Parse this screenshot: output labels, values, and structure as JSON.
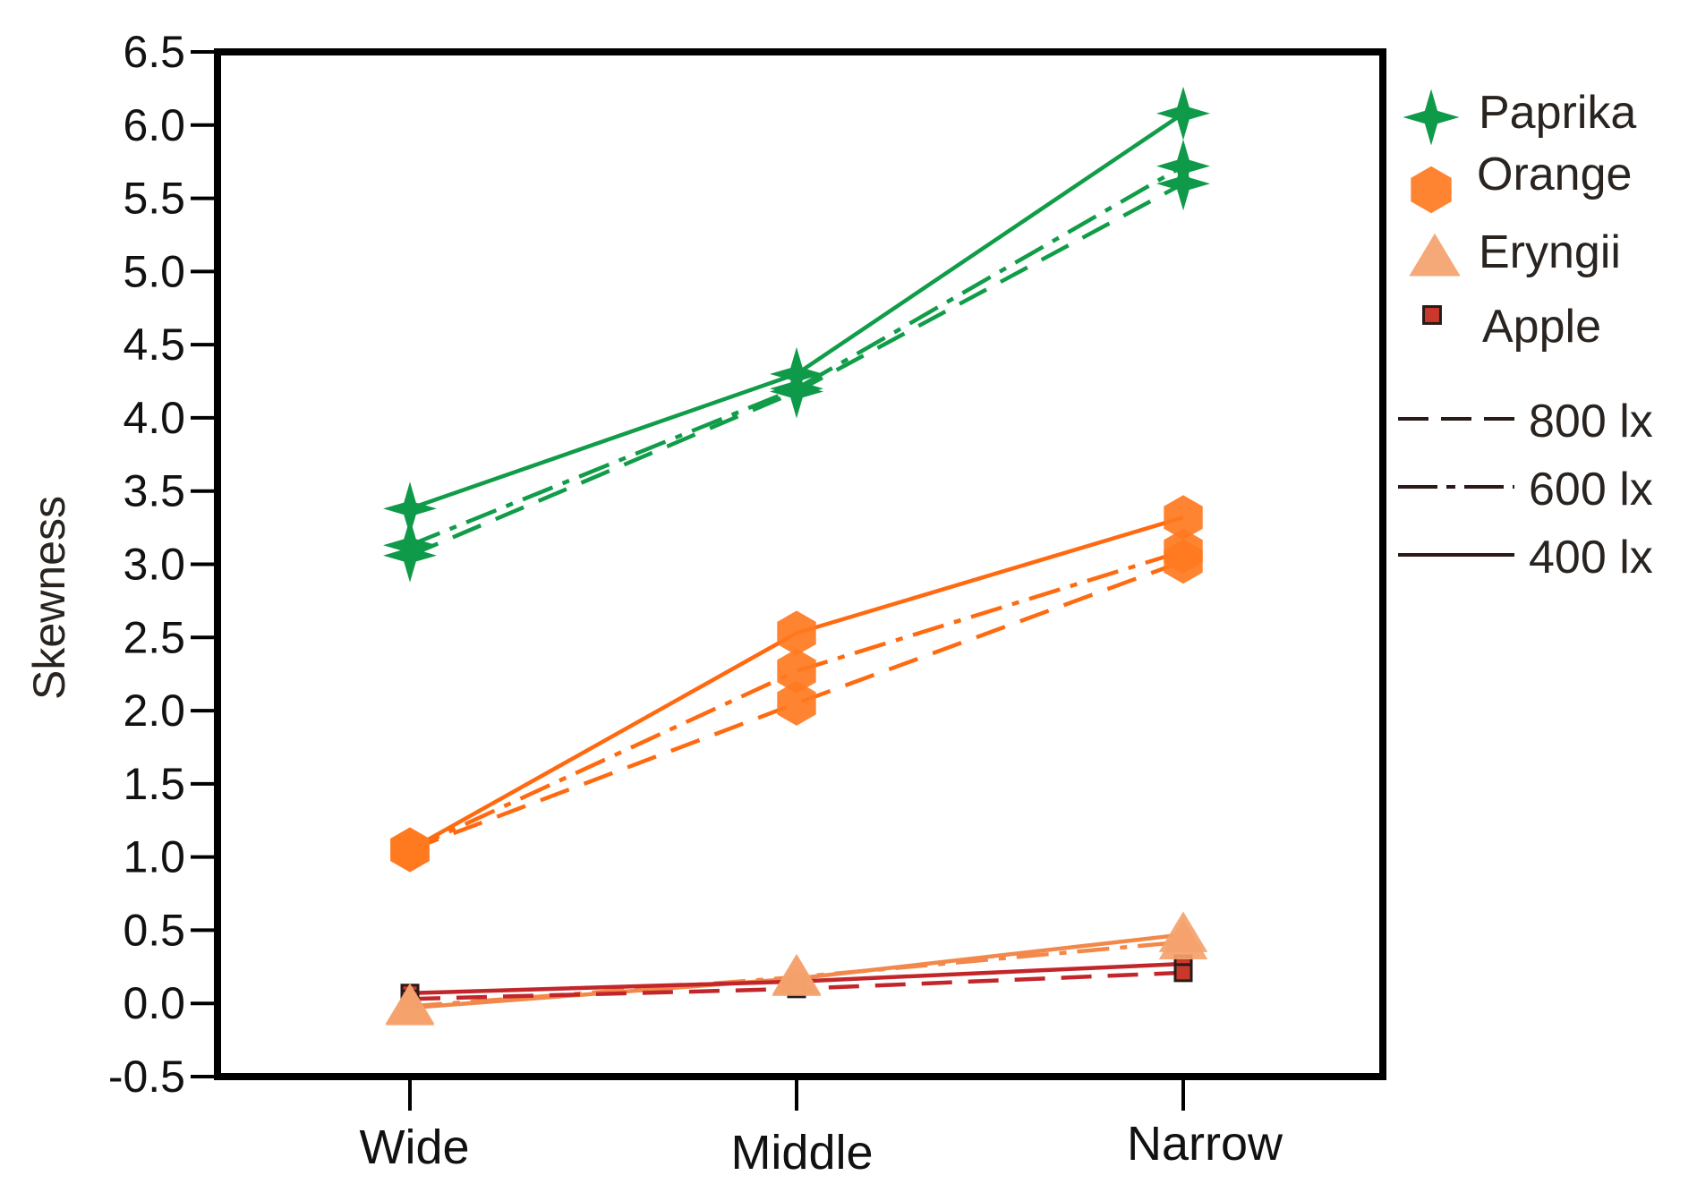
{
  "chart_data": {
    "type": "line",
    "title": "",
    "xlabel": "",
    "ylabel": "Skewness",
    "categories": [
      "Wide",
      "Middle",
      "Narrow"
    ],
    "ylim": [
      -0.5,
      6.5
    ],
    "yticks": [
      "6.5",
      "6.0",
      "5.5",
      "5.0",
      "4.5",
      "4.0",
      "3.5",
      "3.0",
      "2.5",
      "2.0",
      "1.5",
      "1.0",
      "0.5",
      "0.0",
      "-0.5"
    ],
    "grid": false,
    "legend_position": "right",
    "series": [
      {
        "name": "Paprika 400 lx",
        "material": "Paprika",
        "light": "400 lx",
        "values": [
          3.38,
          4.3,
          6.08
        ]
      },
      {
        "name": "Paprika 600 lx",
        "material": "Paprika",
        "light": "600 lx",
        "values": [
          3.13,
          4.2,
          5.72
        ]
      },
      {
        "name": "Paprika 800 lx",
        "material": "Paprika",
        "light": "800 lx",
        "values": [
          3.06,
          4.18,
          5.6
        ]
      },
      {
        "name": "Orange 400 lx",
        "material": "Orange",
        "light": "400 lx",
        "values": [
          1.05,
          2.53,
          3.32
        ]
      },
      {
        "name": "Orange 600 lx",
        "material": "Orange",
        "light": "600 lx",
        "values": [
          1.05,
          2.27,
          3.09
        ]
      },
      {
        "name": "Orange 800 lx",
        "material": "Orange",
        "light": "800 lx",
        "values": [
          1.05,
          2.05,
          3.02
        ]
      },
      {
        "name": "Eryngii 400 lx",
        "material": "Eryngii",
        "light": "400 lx",
        "values": [
          -0.03,
          0.17,
          0.47
        ]
      },
      {
        "name": "Eryngii 600 lx",
        "material": "Eryngii",
        "light": "600 lx",
        "values": [
          -0.02,
          0.18,
          0.42
        ]
      },
      {
        "name": "Apple 400 lx",
        "material": "Apple",
        "light": "400 lx",
        "values": [
          0.07,
          0.15,
          0.27
        ]
      },
      {
        "name": "Apple 800 lx",
        "material": "Apple",
        "light": "800 lx",
        "values": [
          0.03,
          0.1,
          0.21
        ]
      }
    ],
    "materials": [
      {
        "name": "Paprika",
        "marker": "star",
        "color": "#0f9a4a"
      },
      {
        "name": "Orange",
        "marker": "hexagon",
        "color": "#ff7a1f"
      },
      {
        "name": "Eryngii",
        "marker": "triangle",
        "color": "#f4a26c"
      },
      {
        "name": "Apple",
        "marker": "square",
        "color": "#c9382a"
      }
    ],
    "line_styles": [
      {
        "name": "800 lx",
        "dash": "dashed"
      },
      {
        "name": "600 lx",
        "dash": "dash-dot"
      },
      {
        "name": "400 lx",
        "dash": "solid"
      }
    ],
    "line_colors": {
      "Paprika": "#109c48",
      "Orange": "#ff6a10",
      "Eryngii": "#f2884a",
      "Apple": "#c2262a"
    }
  }
}
